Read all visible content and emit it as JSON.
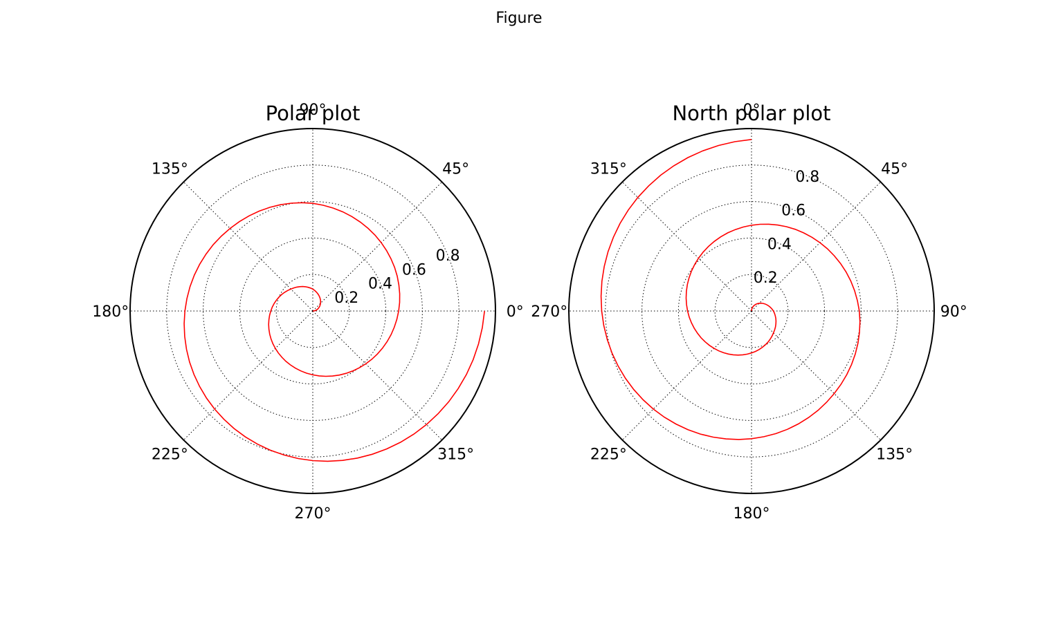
{
  "figure": {
    "title": "Figure"
  },
  "chart_data": [
    {
      "type": "line",
      "subtype": "polar",
      "title": "Polar plot",
      "theta_zero_location": "E",
      "theta_direction": "counterclockwise",
      "theta_tick_labels": [
        "0°",
        "45°",
        "90°",
        "135°",
        "180°",
        "225°",
        "270°",
        "315°"
      ],
      "r_tick_labels": [
        "0.2",
        "0.4",
        "0.6",
        "0.8"
      ],
      "rlim": [
        0,
        1
      ],
      "grid": true,
      "series": [
        {
          "color": "#ff0000",
          "points": [
            {
              "theta": 0,
              "r": 0
            },
            {
              "theta": 45,
              "r": 0.06
            },
            {
              "theta": 90,
              "r": 0.12
            },
            {
              "theta": 135,
              "r": 0.17
            },
            {
              "theta": 180,
              "r": 0.23
            },
            {
              "theta": 225,
              "r": 0.29
            },
            {
              "theta": 270,
              "r": 0.35
            },
            {
              "theta": 315,
              "r": 0.41
            },
            {
              "theta": 360,
              "r": 0.47
            },
            {
              "theta": 405,
              "r": 0.53
            },
            {
              "theta": 450,
              "r": 0.59
            },
            {
              "theta": 495,
              "r": 0.64
            },
            {
              "theta": 540,
              "r": 0.7
            },
            {
              "theta": 585,
              "r": 0.76
            },
            {
              "theta": 630,
              "r": 0.82
            },
            {
              "theta": 675,
              "r": 0.88
            },
            {
              "theta": 720,
              "r": 0.94
            }
          ]
        }
      ]
    },
    {
      "type": "line",
      "subtype": "polar",
      "title": "North polar plot",
      "theta_zero_location": "N",
      "theta_direction": "clockwise",
      "theta_tick_labels": [
        "0°",
        "45°",
        "90°",
        "135°",
        "180°",
        "225°",
        "270°",
        "315°"
      ],
      "r_tick_labels": [
        "0.2",
        "0.4",
        "0.6",
        "0.8"
      ],
      "rlim": [
        0,
        1
      ],
      "grid": true,
      "series": [
        {
          "color": "#ff0000",
          "points": [
            {
              "theta": 0,
              "r": 0
            },
            {
              "theta": 45,
              "r": 0.06
            },
            {
              "theta": 90,
              "r": 0.12
            },
            {
              "theta": 135,
              "r": 0.17
            },
            {
              "theta": 180,
              "r": 0.23
            },
            {
              "theta": 225,
              "r": 0.29
            },
            {
              "theta": 270,
              "r": 0.35
            },
            {
              "theta": 315,
              "r": 0.41
            },
            {
              "theta": 360,
              "r": 0.47
            },
            {
              "theta": 405,
              "r": 0.53
            },
            {
              "theta": 450,
              "r": 0.59
            },
            {
              "theta": 495,
              "r": 0.64
            },
            {
              "theta": 540,
              "r": 0.7
            },
            {
              "theta": 585,
              "r": 0.76
            },
            {
              "theta": 630,
              "r": 0.82
            },
            {
              "theta": 675,
              "r": 0.88
            },
            {
              "theta": 720,
              "r": 0.94
            }
          ]
        }
      ]
    }
  ]
}
